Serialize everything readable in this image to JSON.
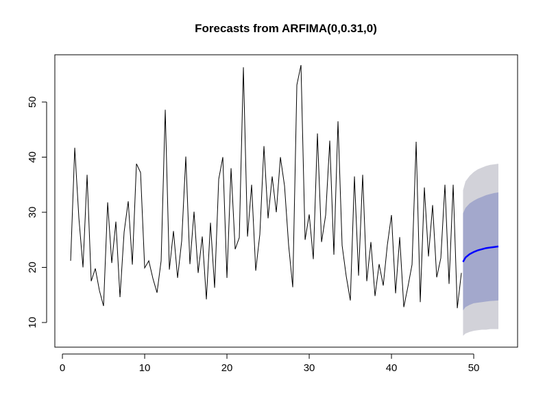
{
  "chart_data": {
    "type": "line",
    "title": "Forecasts from ARFIMA(0,0.31,0)",
    "x": [
      1,
      1.5,
      2,
      2.5,
      3,
      3.5,
      4,
      4.5,
      5,
      5.5,
      6,
      6.5,
      7,
      7.5,
      8,
      8.5,
      9,
      9.5,
      10,
      10.5,
      11,
      11.5,
      12,
      12.5,
      13,
      13.5,
      14,
      14.5,
      15,
      15.5,
      16,
      16.5,
      17,
      17.5,
      18,
      18.5,
      19,
      19.5,
      20,
      20.5,
      21,
      21.5,
      22,
      22.5,
      23,
      23.5,
      24,
      24.5,
      25,
      25.5,
      26,
      26.5,
      27,
      27.5,
      28,
      28.5,
      29,
      29.5,
      30,
      30.5,
      31,
      31.5,
      32,
      32.5,
      33,
      33.5,
      34,
      34.5,
      35,
      35.5,
      36,
      36.5,
      37,
      37.5,
      38,
      38.5,
      39,
      39.5,
      40,
      40.5,
      41,
      41.5,
      42,
      42.5,
      43,
      43.5,
      44,
      44.5,
      45,
      45.5,
      46,
      46.5,
      47,
      47.5,
      48,
      48.5
    ],
    "values": [
      21.2,
      41.7,
      29.0,
      20.0,
      36.8,
      17.5,
      19.8,
      15.8,
      13.0,
      31.8,
      20.8,
      28.3,
      14.6,
      26.4,
      32.0,
      20.5,
      38.8,
      37.2,
      19.9,
      21.2,
      18.0,
      15.4,
      21.2,
      48.6,
      19.6,
      26.6,
      18.1,
      24.8,
      40.1,
      20.6,
      30.1,
      19.0,
      25.6,
      14.2,
      28.1,
      16.3,
      36.0,
      40.0,
      18.1,
      38.0,
      23.3,
      25.4,
      56.3,
      25.6,
      35.0,
      19.4,
      26.0,
      42.0,
      28.9,
      36.5,
      30.0,
      40.0,
      34.8,
      24.0,
      16.4,
      53.1,
      56.7,
      25.0,
      29.6,
      21.5,
      44.3,
      24.6,
      29.5,
      43.0,
      22.3,
      46.5,
      24.0,
      18.4,
      14.0,
      36.5,
      18.5,
      36.8,
      17.5,
      24.6,
      14.8,
      20.6,
      16.7,
      24.1,
      29.5,
      15.3,
      25.5,
      12.8,
      16.5,
      20.5,
      42.8,
      13.7,
      34.5,
      22.0,
      31.3,
      18.2,
      21.7,
      35.0,
      17.0,
      35.0,
      12.6,
      19.0
    ],
    "color": "#000000",
    "forecast": {
      "x": [
        48.7,
        49,
        49.5,
        50,
        50.5,
        51,
        51.5,
        52,
        52.5,
        53
      ],
      "mean": [
        21.0,
        21.8,
        22.4,
        22.8,
        23.1,
        23.3,
        23.5,
        23.6,
        23.7,
        23.8
      ],
      "lo80": [
        12.2,
        12.8,
        13.2,
        13.5,
        13.6,
        13.7,
        13.8,
        13.9,
        13.95,
        14.0
      ],
      "hi80": [
        29.8,
        30.8,
        31.6,
        32.1,
        32.5,
        32.8,
        33.1,
        33.3,
        33.5,
        33.6
      ],
      "lo95": [
        7.6,
        8.0,
        8.3,
        8.5,
        8.6,
        8.7,
        8.7,
        8.8,
        8.8,
        8.8
      ],
      "hi95": [
        34.0,
        35.6,
        36.6,
        37.3,
        37.8,
        38.1,
        38.4,
        38.6,
        38.7,
        38.8
      ],
      "color": "#0000ff",
      "band80_color": "#a3a8cc",
      "band95_color": "#d2d2d9"
    },
    "xlim": [
      -0.92,
      55.33
    ],
    "ylim": [
      5.53,
      58.57
    ],
    "xticks": [
      0,
      10,
      20,
      30,
      40,
      50
    ],
    "yticks": [
      10,
      20,
      30,
      40,
      50
    ]
  }
}
